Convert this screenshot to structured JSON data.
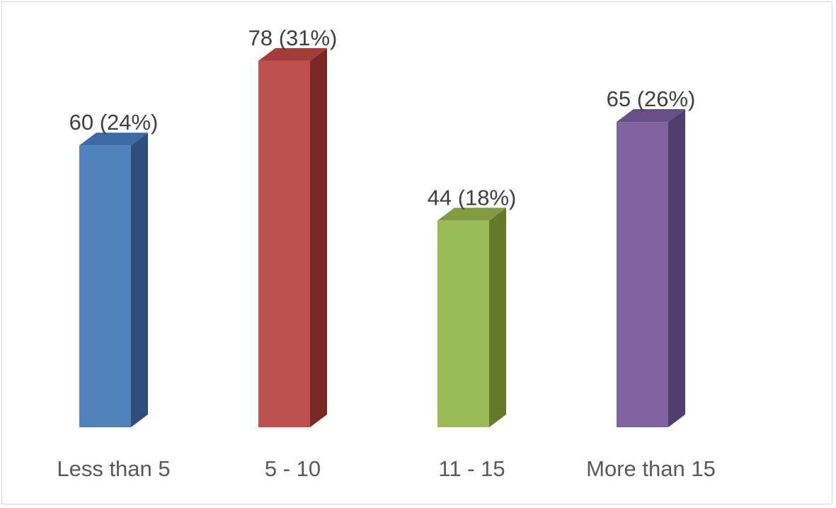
{
  "chart_data": {
    "type": "bar",
    "style": "3d-column",
    "title": "",
    "xlabel": "",
    "ylabel": "",
    "categories": [
      "Less than 5",
      "5 - 10",
      "11 - 15",
      "More than 15"
    ],
    "values": [
      60,
      78,
      44,
      65
    ],
    "percentages": [
      "24%",
      "31%",
      "18%",
      "26%"
    ],
    "data_labels": [
      "60 (24%)",
      "78 (31%)",
      "44 (18%)",
      "65 (26%)"
    ],
    "colors": [
      "#4f81bd",
      "#c0504d",
      "#9bbb59",
      "#8064a2"
    ],
    "side_colors": [
      "#2f4f7a",
      "#7a2826",
      "#627a2a",
      "#4f3d6b"
    ],
    "top_colors": [
      "#3d6aa3",
      "#a23d3a",
      "#7f9c43",
      "#684f88"
    ],
    "ylim": [
      0,
      90
    ],
    "grid": false,
    "legend": "none"
  }
}
